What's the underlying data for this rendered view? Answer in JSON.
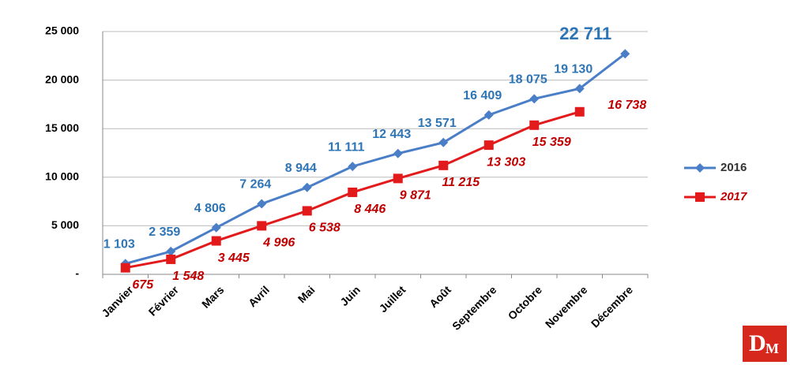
{
  "chart_data": {
    "type": "line",
    "categories": [
      "Janvier",
      "Février",
      "Mars",
      "Avril",
      "Mai",
      "Juin",
      "Juillet",
      "Août",
      "Septembre",
      "Octobre",
      "Novembre",
      "Décembre"
    ],
    "series": [
      {
        "name": "2016",
        "color": "#4a7fc8",
        "label_color": "#2e75b6",
        "marker": "diamond",
        "values": [
          1103,
          2359,
          4806,
          7264,
          8944,
          11111,
          12443,
          13571,
          16409,
          18075,
          19130,
          22711
        ],
        "value_labels": [
          "1 103",
          "2 359",
          "4 806",
          "7 264",
          "8 944",
          "11 111",
          "12 443",
          "13 571",
          "16 409",
          "18 075",
          "19 130",
          "22 711"
        ]
      },
      {
        "name": "2017",
        "color": "#e31a1c",
        "label_color": "#c00000",
        "marker": "square",
        "values": [
          675,
          1548,
          3445,
          4996,
          6538,
          8446,
          9871,
          11215,
          13303,
          15359,
          16738,
          null
        ],
        "value_labels": [
          "675",
          "1 548",
          "3 445",
          "4 996",
          "6 538",
          "8 446",
          "9 871",
          "11 215",
          "13 303",
          "15 359",
          "16 738",
          null
        ]
      }
    ],
    "ylim": [
      0,
      25000
    ],
    "yticks": [
      {
        "value": 0,
        "label": "-"
      },
      {
        "value": 5000,
        "label": "5 000"
      },
      {
        "value": 10000,
        "label": "10 000"
      },
      {
        "value": 15000,
        "label": "15 000"
      },
      {
        "value": 20000,
        "label": "20 000"
      },
      {
        "value": 25000,
        "label": "25 000"
      }
    ],
    "grid": true,
    "legend": "right"
  },
  "logo": [
    "D",
    "M"
  ]
}
